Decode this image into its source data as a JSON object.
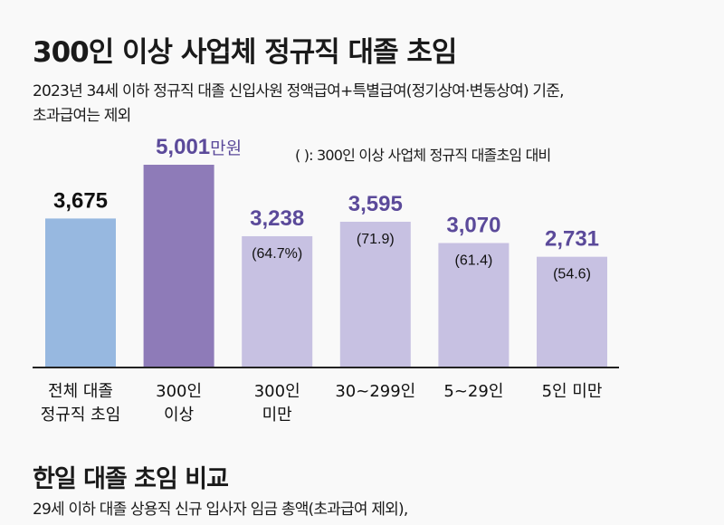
{
  "header": {
    "title": "300인 이상 사업체 정규직 대졸 초임",
    "subtitle_line1": "2023년 34세 이하 정규직 대졸 신입사원 정액급여+특별급여(정기상여·변동상여) 기준,",
    "subtitle_line2": "초과급여는 제외"
  },
  "chart_data": {
    "type": "bar",
    "unit": "만원",
    "note": "( ): 300인 이상 사업체 정규직 대졸초임 대비",
    "categories": [
      [
        "전체 대졸",
        "정규직 초임"
      ],
      [
        "300인",
        "이상"
      ],
      [
        "300인",
        "미만"
      ],
      [
        "30~299인"
      ],
      [
        "5~29인"
      ],
      [
        "5인 미만"
      ]
    ],
    "values": [
      3675,
      5001,
      3238,
      3595,
      3070,
      2731
    ],
    "value_labels": [
      "3,675",
      "5,001",
      "3,238",
      "3,595",
      "3,070",
      "2,731"
    ],
    "ratio_labels": [
      "",
      "",
      "(64.7%)",
      "(71.9)",
      "(61.4)",
      "(54.6)"
    ],
    "colors": [
      "#97b8e0",
      "#8e7bb8",
      "#c7c1e2",
      "#c7c1e2",
      "#c7c1e2",
      "#c7c1e2"
    ],
    "label_colors": [
      "#111111",
      "#5b4a9a",
      "#5b4a9a",
      "#5b4a9a",
      "#5b4a9a",
      "#5b4a9a"
    ],
    "ylim": [
      0,
      5001
    ],
    "grid": false
  },
  "section2": {
    "title": "한일 대졸 초임 비교",
    "subtitle": "29세 이하 대졸 상용직 신규 입사자 임금 총액(초과급여 제외),"
  }
}
